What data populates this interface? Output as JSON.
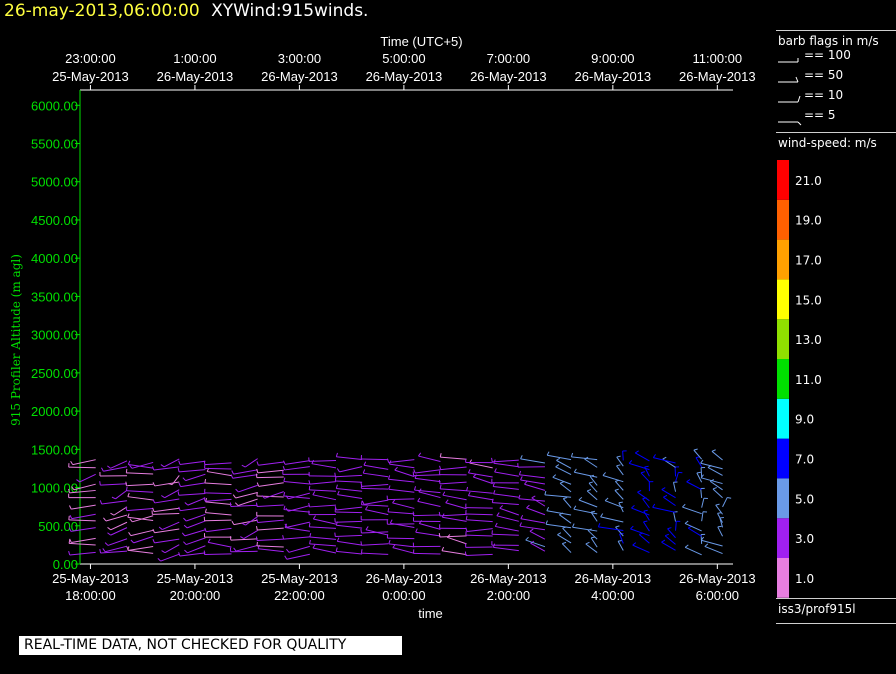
{
  "header": {
    "date_label": "26-may-2013,06:00:00",
    "app_label": "XYWind:915winds."
  },
  "chart_data": {
    "type": "wind-barb",
    "top_axis": {
      "label": "Time (UTC+5)",
      "ticks": [
        {
          "time": "23:00:00",
          "date": "25-May-2013"
        },
        {
          "time": "1:00:00",
          "date": "26-May-2013"
        },
        {
          "time": "3:00:00",
          "date": "26-May-2013"
        },
        {
          "time": "5:00:00",
          "date": "26-May-2013"
        },
        {
          "time": "7:00:00",
          "date": "26-May-2013"
        },
        {
          "time": "9:00:00",
          "date": "26-May-2013"
        },
        {
          "time": "11:00:00",
          "date": "26-May-2013"
        }
      ]
    },
    "bottom_axis": {
      "label": "time",
      "ticks": [
        {
          "date": "25-May-2013",
          "time": "18:00:00"
        },
        {
          "date": "25-May-2013",
          "time": "20:00:00"
        },
        {
          "date": "25-May-2013",
          "time": "22:00:00"
        },
        {
          "date": "26-May-2013",
          "time": "0:00:00"
        },
        {
          "date": "26-May-2013",
          "time": "2:00:00"
        },
        {
          "date": "26-May-2013",
          "time": "4:00:00"
        },
        {
          "date": "26-May-2013",
          "time": "6:00:00"
        }
      ]
    },
    "y_axis": {
      "label": "915 Profiler Altitude (m agl)",
      "ylim": [
        0,
        6200
      ],
      "ticks": [
        "0.00",
        "500.00",
        "1000.00",
        "1500.00",
        "2000.00",
        "2500.00",
        "3000.00",
        "3500.00",
        "4000.00",
        "4500.00",
        "5000.00",
        "5500.00",
        "6000.00"
      ],
      "color": "#00e000"
    },
    "time_range_hours": [
      17.8,
      30.3
    ],
    "profiles": [
      {
        "t": 18.1,
        "speed": 2.0,
        "dir": 250
      },
      {
        "t": 18.7,
        "speed": 2.4,
        "dir": 240
      },
      {
        "t": 19.2,
        "speed": 2.2,
        "dir": 260
      },
      {
        "t": 19.7,
        "speed": 1.8,
        "dir": 230
      },
      {
        "t": 20.2,
        "speed": 2.6,
        "dir": 250
      },
      {
        "t": 20.7,
        "speed": 2.2,
        "dir": 270
      },
      {
        "t": 21.2,
        "speed": 2.4,
        "dir": 240
      },
      {
        "t": 21.7,
        "speed": 2.0,
        "dir": 255
      },
      {
        "t": 22.2,
        "speed": 2.8,
        "dir": 260
      },
      {
        "t": 22.7,
        "speed": 3.0,
        "dir": 270
      },
      {
        "t": 23.2,
        "speed": 2.8,
        "dir": 265
      },
      {
        "t": 23.7,
        "speed": 3.0,
        "dir": 270
      },
      {
        "t": 24.2,
        "speed": 2.6,
        "dir": 280
      },
      {
        "t": 24.7,
        "speed": 2.8,
        "dir": 275
      },
      {
        "t": 25.2,
        "speed": 2.6,
        "dir": 280
      },
      {
        "t": 25.7,
        "speed": 2.4,
        "dir": 285
      },
      {
        "t": 26.2,
        "speed": 2.8,
        "dir": 290
      },
      {
        "t": 26.7,
        "speed": 3.6,
        "dir": 300
      },
      {
        "t": 27.2,
        "speed": 4.4,
        "dir": 310
      },
      {
        "t": 27.7,
        "speed": 5.2,
        "dir": 320
      },
      {
        "t": 28.2,
        "speed": 5.8,
        "dir": 325
      },
      {
        "t": 28.7,
        "speed": 6.8,
        "dir": 330
      },
      {
        "t": 29.2,
        "speed": 6.4,
        "dir": 335
      },
      {
        "t": 29.7,
        "speed": 5.6,
        "dir": 340
      },
      {
        "t": 30.1,
        "speed": 5.2,
        "dir": 340
      }
    ],
    "levels_m": [
      150,
      250,
      350,
      450,
      550,
      650,
      750,
      850,
      950,
      1050,
      1150,
      1250,
      1350
    ],
    "colorbar": {
      "label": "wind-speed: m/s",
      "ticks": [
        "1.0",
        "3.0",
        "5.0",
        "7.0",
        "9.0",
        "11.0",
        "13.0",
        "15.0",
        "17.0",
        "19.0",
        "21.0"
      ],
      "colors": [
        "#e87ee0",
        "#a020f0",
        "#6a9ae8",
        "#0000ff",
        "#00ffff",
        "#00e000",
        "#90e000",
        "#ffff00",
        "#ffa000",
        "#ff6000",
        "#ff0000"
      ]
    },
    "barb_legend": {
      "title": "barb flags in m/s",
      "items": [
        "== 100",
        "== 50",
        "== 10",
        "== 5"
      ]
    },
    "source_label": "iss3/prof915l"
  },
  "notice": "REAL-TIME DATA, NOT CHECKED FOR QUALITY"
}
